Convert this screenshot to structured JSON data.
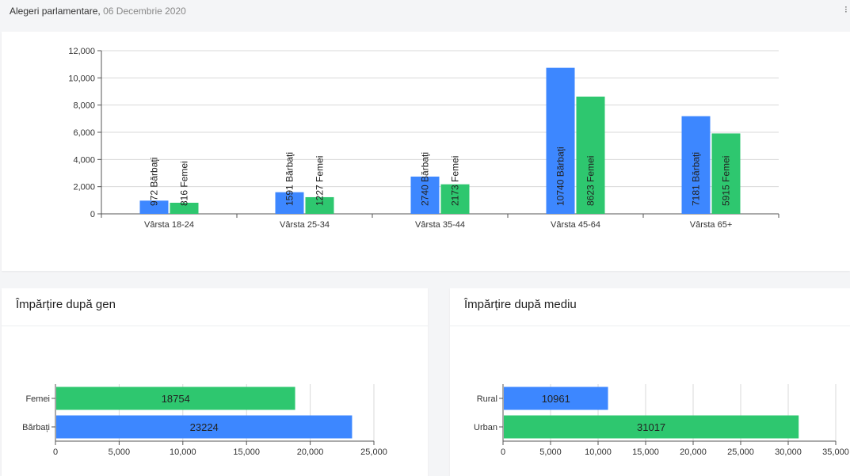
{
  "header": {
    "title": "Alegeri parlamentare",
    "separator": ",",
    "date": "06 Decembrie 2020",
    "menu_icon": "more-vertical-icon"
  },
  "colors": {
    "barbati": "#3d87ff",
    "femei": "#2ec76f",
    "grid": "#d9d9d9",
    "axis": "#555555",
    "text": "#333333"
  },
  "age_card": {
    "chart_data": {
      "type": "bar",
      "categories": [
        "Vârsta 18-24",
        "Vârsta 25-34",
        "Vârsta 35-44",
        "Vârsta 45-64",
        "Vârsta 65+"
      ],
      "series": [
        {
          "name": "Bărbați",
          "values": [
            972,
            1591,
            2740,
            10740,
            7181
          ],
          "color": "#3d87ff"
        },
        {
          "name": "Femei",
          "values": [
            816,
            1227,
            2173,
            8623,
            5915
          ],
          "color": "#2ec76f"
        }
      ],
      "ylim": [
        0,
        12000
      ],
      "yticks": [
        0,
        2000,
        4000,
        6000,
        8000,
        10000,
        12000
      ],
      "ytick_labels": [
        "0",
        "2,000",
        "4,000",
        "6,000",
        "8,000",
        "10,000",
        "12,000"
      ],
      "data_labels": [
        [
          "972 Bărbați",
          "1591 Bărbați",
          "2740 Bărbați",
          "10740 Bărbați",
          "7181 Bărbați"
        ],
        [
          "816 Femei",
          "1227 Femei",
          "2173 Femei",
          "8623 Femei",
          "5915 Femei"
        ]
      ],
      "grid": true,
      "legend": "none"
    }
  },
  "gen_card": {
    "title": "Împărțire după gen",
    "chart_data": {
      "type": "bar",
      "orientation": "horizontal",
      "categories": [
        "Femei",
        "Bărbați"
      ],
      "values": [
        18754,
        23224
      ],
      "value_labels": [
        "18754",
        "23224"
      ],
      "colors": [
        "#2ec76f",
        "#3d87ff"
      ],
      "xlim": [
        0,
        25000
      ],
      "xticks": [
        0,
        5000,
        10000,
        15000,
        20000,
        25000
      ],
      "xtick_labels": [
        "0",
        "5,000",
        "10,000",
        "15,000",
        "20,000",
        "25,000"
      ],
      "grid": true
    }
  },
  "mediu_card": {
    "title": "Împărțire după mediu",
    "chart_data": {
      "type": "bar",
      "orientation": "horizontal",
      "categories": [
        "Rural",
        "Urban"
      ],
      "values": [
        10961,
        31017
      ],
      "value_labels": [
        "10961",
        "31017"
      ],
      "colors": [
        "#3d87ff",
        "#2ec76f"
      ],
      "xlim": [
        0,
        35000
      ],
      "xticks": [
        0,
        5000,
        10000,
        15000,
        20000,
        25000,
        30000,
        35000
      ],
      "xtick_labels": [
        "0",
        "5,000",
        "10,000",
        "15,000",
        "20,000",
        "25,000",
        "30,000",
        "35,000"
      ],
      "grid": true
    }
  }
}
